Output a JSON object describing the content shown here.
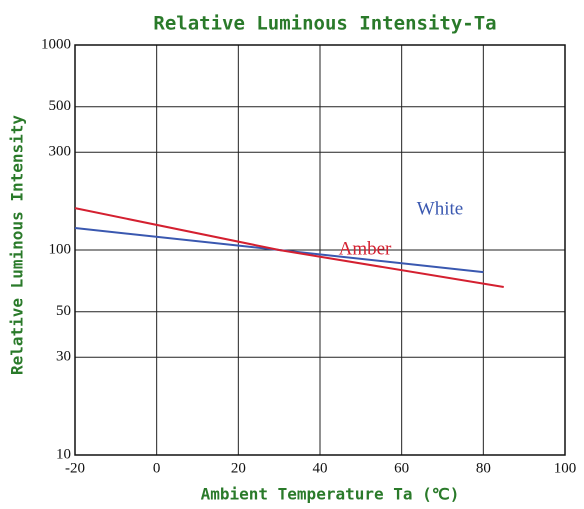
{
  "chart_data": {
    "type": "line",
    "title": "Relative Luminous Intensity-Ta",
    "x_label": "Ambient Temperature Ta (℃)",
    "y_label": "Relative Luminous Intensity",
    "series": [
      {
        "name": "White",
        "color": "#3a58b0",
        "x": [
          -20,
          30,
          80
        ],
        "values": [
          128,
          100,
          78
        ]
      },
      {
        "name": "Amber",
        "color": "#d42030",
        "x": [
          -20,
          30,
          85
        ],
        "values": [
          160,
          100,
          66
        ]
      }
    ],
    "xlim": [
      -20,
      100
    ],
    "xticks": [
      -20,
      0,
      20,
      40,
      60,
      80,
      100
    ],
    "ylim": [
      10,
      1000
    ],
    "yticks": [
      10,
      30,
      50,
      100,
      300,
      500,
      1000
    ],
    "log_y": true,
    "grid": true
  }
}
